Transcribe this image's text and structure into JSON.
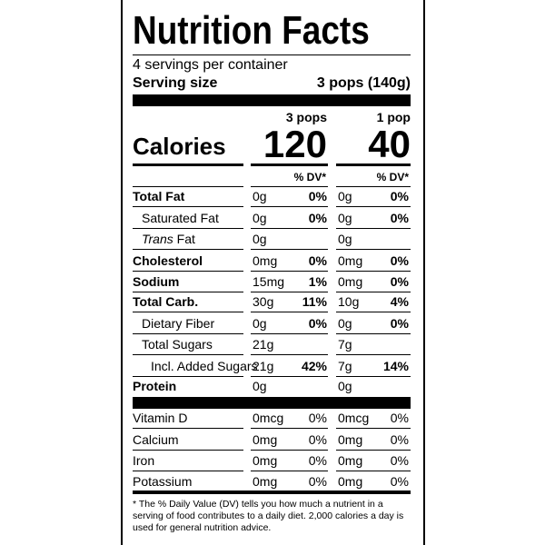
{
  "header": {
    "title": "Nutrition Facts",
    "servings": "4 servings per container",
    "serving_size_label": "Serving size",
    "serving_size": "3 pops (140g)"
  },
  "columns": [
    "3 pops",
    "1 pop"
  ],
  "calories": {
    "label": "Calories",
    "values": [
      "120",
      "40"
    ]
  },
  "dv_header": [
    "% DV*",
    "% DV*"
  ],
  "nutrients": [
    {
      "name": "Total Fat",
      "amounts": [
        "0g",
        "0g"
      ],
      "dv": [
        "0%",
        "0%"
      ]
    },
    {
      "name": "Saturated Fat",
      "amounts": [
        "0g",
        "0g"
      ],
      "dv": [
        "0%",
        "0%"
      ]
    },
    {
      "name_italic": "Trans",
      "name": "Fat",
      "amounts": [
        "0g",
        "0g"
      ]
    },
    {
      "name": "Cholesterol",
      "amounts": [
        "0mg",
        "0mg"
      ],
      "dv": [
        "0%",
        "0%"
      ]
    },
    {
      "name": "Sodium",
      "amounts": [
        "15mg",
        "0mg"
      ],
      "dv": [
        "1%",
        "0%"
      ]
    },
    {
      "name": "Total Carb.",
      "amounts": [
        "30g",
        "10g"
      ],
      "dv": [
        "11%",
        "4%"
      ]
    },
    {
      "name": "Dietary Fiber",
      "amounts": [
        "0g",
        "0g"
      ],
      "dv": [
        "0%",
        "0%"
      ]
    },
    {
      "name": "Total Sugars",
      "amounts": [
        "21g",
        "7g"
      ]
    },
    {
      "name": "Incl. Added Sugars",
      "amounts": [
        "21g",
        "7g"
      ],
      "dv": [
        "42%",
        "14%"
      ]
    },
    {
      "name": "Protein",
      "amounts": [
        "0g",
        "0g"
      ]
    }
  ],
  "vitamins": [
    {
      "name": "Vitamin D",
      "amounts": [
        "0mcg",
        "0mcg"
      ],
      "dv": [
        "0%",
        "0%"
      ]
    },
    {
      "name": "Calcium",
      "amounts": [
        "0mg",
        "0mg"
      ],
      "dv": [
        "0%",
        "0%"
      ]
    },
    {
      "name": "Iron",
      "amounts": [
        "0mg",
        "0mg"
      ],
      "dv": [
        "0%",
        "0%"
      ]
    },
    {
      "name": "Potassium",
      "amounts": [
        "0mg",
        "0mg"
      ],
      "dv": [
        "0%",
        "0%"
      ]
    }
  ],
  "footnote": "* The % Daily Value (DV) tells you how much a nutrient in a serving of food contributes to a daily diet. 2,000 calories a day is used for general nutrition advice."
}
